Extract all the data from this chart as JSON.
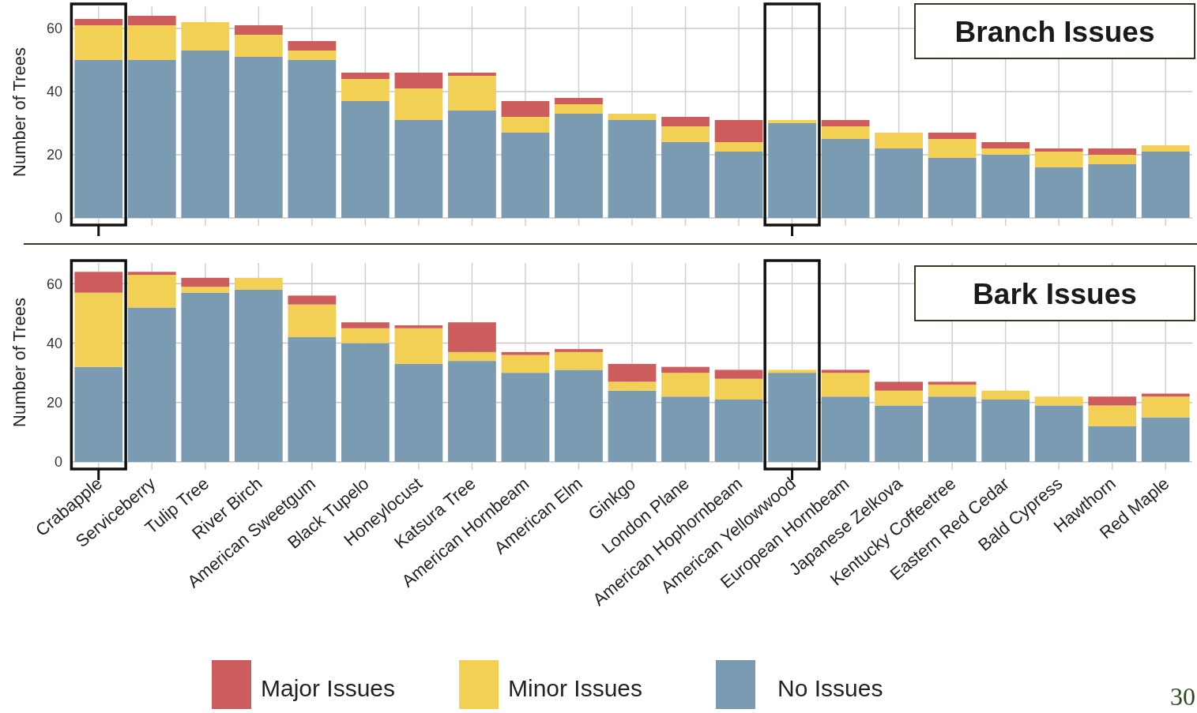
{
  "chart_data": [
    {
      "type": "bar",
      "title": "Branch Issues",
      "ylabel": "Number of Trees",
      "stacked": true,
      "grid": true,
      "tick_labels": "y",
      "ylim": [
        0,
        67
      ],
      "yticks": [
        0,
        20,
        40,
        60
      ],
      "categories": [
        null,
        null,
        null,
        null,
        null,
        null,
        null,
        null,
        null,
        null,
        null,
        null,
        null,
        null,
        null,
        null,
        null,
        null,
        null,
        null,
        null
      ],
      "series": [
        {
          "color": "#7b9bb3",
          "values": [
            50,
            50,
            53,
            51,
            50,
            37,
            31,
            34,
            27,
            33,
            31,
            24,
            21,
            30,
            25,
            22,
            19,
            20,
            16,
            17,
            21
          ]
        },
        {
          "color": "#f2cf55",
          "values": [
            11,
            11,
            9,
            7,
            3,
            7,
            10,
            11,
            5,
            3,
            2,
            5,
            3,
            1,
            4,
            5,
            6,
            2,
            5,
            3,
            2
          ]
        },
        {
          "color": "#cd5c5c",
          "values": [
            2,
            3,
            0,
            3,
            3,
            2,
            5,
            1,
            5,
            2,
            0,
            3,
            7,
            0,
            2,
            0,
            2,
            2,
            1,
            2,
            0
          ]
        }
      ]
    },
    {
      "type": "bar",
      "title": "Bark Issues",
      "ylabel": "Number of Trees",
      "stacked": true,
      "grid": true,
      "legend": "bottom",
      "ylim": [
        0,
        67
      ],
      "yticks": [
        0,
        20,
        40,
        60
      ],
      "annotations": [
        "30"
      ],
      "categories": [
        "Crabapple",
        "Serviceberry",
        "Tulip Tree",
        "River Birch",
        "American Sweetgum",
        "Black Tupelo",
        "Honeylocust",
        "Katsura Tree",
        "American Hornbeam",
        "American Elm",
        "Ginkgo",
        "London Plane",
        "American Hophornbeam",
        "American Yellowwood",
        "European Hornbeam",
        "Japanese Zelkova",
        "Kentucky Coffeetree",
        "Eastern Red Cedar",
        "Bald Cypress",
        "Hawthorn",
        "Red Maple"
      ],
      "series": [
        {
          "name": "No Issues",
          "color": "#7b9bb3",
          "values": [
            32,
            52,
            57,
            58,
            42,
            40,
            33,
            34,
            30,
            31,
            24,
            22,
            21,
            30,
            22,
            19,
            22,
            21,
            19,
            12,
            15
          ]
        },
        {
          "name": "Minor Issues",
          "color": "#f2cf55",
          "values": [
            25,
            11,
            2,
            4,
            11,
            5,
            12,
            3,
            6,
            6,
            3,
            8,
            7,
            1,
            8,
            5,
            4,
            3,
            3,
            7,
            7
          ]
        },
        {
          "name": "Major Issues",
          "color": "#cd5c5c",
          "values": [
            7,
            1,
            3,
            0,
            3,
            2,
            1,
            10,
            1,
            1,
            6,
            2,
            3,
            0,
            1,
            3,
            1,
            0,
            0,
            3,
            1
          ]
        }
      ]
    }
  ]
}
